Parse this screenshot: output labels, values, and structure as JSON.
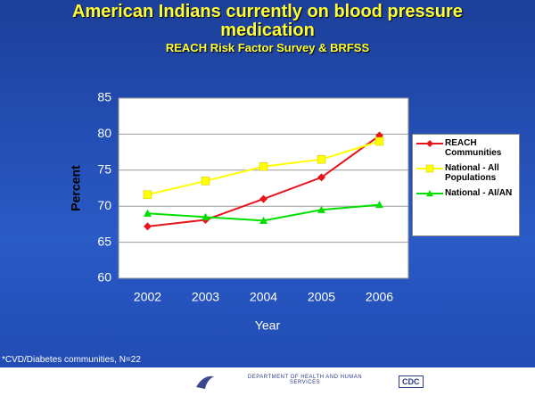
{
  "chart_data": {
    "type": "line",
    "title": "American Indians currently on blood pressure medication",
    "subtitle": "REACH Risk Factor Survey & BRFSS",
    "x_label": "Year",
    "y_label": "Percent",
    "categories": [
      "2002",
      "2003",
      "2004",
      "2005",
      "2006"
    ],
    "series": [
      {
        "name": "REACH Communities",
        "color": "#e8141c",
        "marker": "diamond",
        "values": [
          67.2,
          68.1,
          71,
          74,
          79.8
        ]
      },
      {
        "name": "National - All Populations",
        "color": "#ffff00",
        "marker": "square",
        "values": [
          71.6,
          73.5,
          75.5,
          76.5,
          79
        ]
      },
      {
        "name": "National - AI/AN",
        "color": "#00e000",
        "marker": "triangle",
        "values": [
          69,
          68.5,
          68,
          69.5,
          70.2
        ]
      }
    ],
    "ylim": [
      60,
      85
    ],
    "yticks": [
      60,
      65,
      70,
      75,
      80,
      85
    ],
    "grid": true,
    "footnote": "*CVD/Diabetes communities, N=22",
    "footer": {
      "agency": "Department of Health and Human Services",
      "logo": "CDC"
    }
  }
}
